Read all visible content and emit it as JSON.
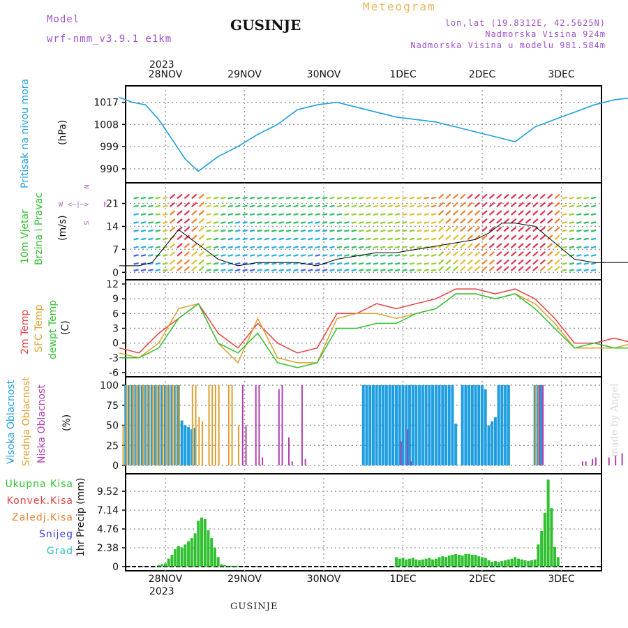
{
  "header": {
    "model_label": "Model",
    "model_name": "wrf-nmm_v3.9.1  e1km",
    "title": "GUSINJE",
    "meteogram": "Meteogram",
    "lonlat": "lon,lat (19.8312E, 42.5625N)",
    "altitude": "Nadmorska Visina 924m",
    "model_altitude": "Nadmorska Visina u modelu 981.584m"
  },
  "footer": {
    "station": "GUSINJE",
    "credit": "made by Angel"
  },
  "time_axis": {
    "year": "2023",
    "labels": [
      "28NOV",
      "29NOV",
      "30NOV",
      "1DEC",
      "2DEC",
      "3DEC"
    ]
  },
  "compass": {
    "n": "N",
    "s": "S",
    "e": "E",
    "w": "W"
  },
  "panels": {
    "pressure": {
      "ylabel": "Pritisak na nivou mora",
      "unit": "(hPa)",
      "color": "#1e9ee0"
    },
    "wind": {
      "ylabel1": "10m Vjetar",
      "ylabel2": "Brzina i Pravac",
      "unit": "(m/s)"
    },
    "temp": {
      "label_t2m": "2m Temp",
      "label_sfc": "SFC Temp",
      "label_dew": "dewpt Temp",
      "unit": "(C)",
      "colors": {
        "t2m": "#e84040",
        "sfc": "#e0a030",
        "dew": "#30c030"
      }
    },
    "cloud": {
      "label_high": "Visoka Oblacnost",
      "label_mid": "Srednja Oblacnost",
      "label_low": "Niska Oblacnost",
      "unit": "(%)",
      "colors": {
        "high": "#1e9ee0",
        "mid": "#e0a030",
        "low": "#b040b0"
      }
    },
    "precip": {
      "unit_label": "1hr Precip (mm)",
      "legend": [
        {
          "name": "Ukupna Kisa",
          "color": "#30c030"
        },
        {
          "name": "Konvek.Kisa",
          "color": "#e84040"
        },
        {
          "name": "Zaledj.Kisa",
          "color": "#f08030"
        },
        {
          "name": "Snijeg",
          "color": "#4040e0"
        },
        {
          "name": "Grad",
          "color": "#30c0c0"
        }
      ]
    }
  },
  "chart_data": [
    {
      "type": "line",
      "panel": "pressure",
      "ylabel": "Pritisak na nivou mora (hPa)",
      "yticks": [
        990,
        999,
        1008,
        1017
      ],
      "ylim": [
        986,
        1022
      ],
      "x_hours": [
        0,
        4,
        8,
        12,
        16,
        20,
        24,
        30,
        36,
        42,
        48,
        54,
        60,
        66,
        72,
        78,
        84,
        90,
        96,
        102,
        108,
        114,
        120,
        126,
        132,
        138,
        144,
        150,
        156,
        162,
        168
      ],
      "values": [
        1019,
        1017,
        1016,
        1010,
        1002,
        994,
        989,
        995,
        999,
        1004,
        1008,
        1014,
        1016,
        1017,
        1015,
        1013,
        1011,
        1010,
        1009,
        1007,
        1005,
        1003,
        1001,
        1007,
        1010,
        1013,
        1016,
        1018,
        1019,
        1020,
        1017
      ]
    },
    {
      "type": "line",
      "panel": "wind",
      "ylabel": "10m Vjetar Brzina i Pravac (m/s)",
      "yticks": [
        0,
        7,
        14,
        21
      ],
      "ylim": [
        -1,
        26
      ],
      "x_hours": [
        0,
        6,
        10,
        14,
        18,
        22,
        26,
        30,
        36,
        42,
        48,
        54,
        60,
        66,
        72,
        78,
        84,
        90,
        96,
        102,
        108,
        112,
        116,
        120,
        126,
        132,
        138,
        144,
        150,
        156,
        162,
        168
      ],
      "values": [
        2,
        2,
        3,
        8,
        13,
        10,
        7,
        4,
        2,
        3,
        3,
        3,
        2,
        4,
        5,
        6,
        6,
        7,
        8,
        9,
        10,
        12,
        15,
        15,
        14,
        9,
        4,
        3,
        3,
        3,
        2,
        3
      ]
    },
    {
      "type": "line",
      "panel": "temp",
      "ylabel": "(C)",
      "yticks": [
        -6,
        -3,
        0,
        3,
        6,
        9,
        12
      ],
      "ylim": [
        -6,
        12
      ],
      "x_hours": [
        0,
        6,
        12,
        18,
        24,
        30,
        36,
        42,
        48,
        54,
        60,
        66,
        72,
        78,
        84,
        90,
        96,
        102,
        108,
        114,
        120,
        126,
        132,
        138,
        144,
        150,
        156,
        162,
        168
      ],
      "series": [
        {
          "name": "2m Temp",
          "color": "#e84040",
          "values": [
            -1,
            -2,
            2,
            5,
            8,
            2,
            -1,
            4,
            0,
            -2,
            -1,
            6,
            6,
            8,
            7,
            8,
            9,
            11,
            11,
            10,
            11,
            9,
            5,
            0,
            0,
            1,
            0,
            4,
            4
          ]
        },
        {
          "name": "SFC Temp",
          "color": "#e0a030",
          "values": [
            -2,
            -3,
            0,
            7,
            8,
            0,
            -4,
            5,
            -3,
            -4,
            -4,
            5,
            6,
            6,
            5,
            6,
            7,
            10,
            10,
            9,
            10,
            8,
            4,
            -1,
            -1,
            -1,
            0,
            5,
            8
          ]
        },
        {
          "name": "dewpt Temp",
          "color": "#30c030",
          "values": [
            -3,
            -3,
            -1,
            5,
            8,
            0,
            -2,
            2,
            -4,
            -5,
            -4,
            3,
            3,
            4,
            4,
            6,
            7,
            10,
            10,
            9,
            10,
            7,
            3,
            -1,
            0,
            -1,
            -1,
            0,
            0
          ]
        }
      ]
    },
    {
      "type": "bar",
      "panel": "cloud",
      "ylabel": "(%)",
      "yticks": [
        0,
        25,
        50,
        75,
        100
      ],
      "ylim": [
        0,
        100
      ],
      "series": [
        {
          "name": "Visoka Oblacnost",
          "color": "#1e9ee0",
          "x_hours": [
            2,
            3,
            4,
            5,
            6,
            7,
            8,
            9,
            10,
            11,
            12,
            13,
            14,
            15,
            16,
            17,
            18,
            19,
            20,
            21,
            22,
            23,
            74,
            75,
            76,
            77,
            78,
            79,
            80,
            81,
            82,
            83,
            84,
            85,
            86,
            87,
            88,
            89,
            90,
            91,
            92,
            93,
            94,
            95,
            96,
            97,
            98,
            99,
            100,
            101,
            102,
            104,
            105,
            106,
            107,
            108,
            109,
            110,
            111,
            112,
            113,
            114,
            115,
            116,
            117,
            118,
            126,
            127,
            128
          ],
          "values": [
            100,
            100,
            100,
            100,
            100,
            100,
            100,
            100,
            100,
            100,
            100,
            100,
            100,
            100,
            100,
            100,
            100,
            56,
            50,
            48,
            45,
            47,
            100,
            100,
            100,
            100,
            100,
            100,
            100,
            100,
            100,
            100,
            100,
            100,
            100,
            100,
            100,
            100,
            100,
            100,
            100,
            100,
            100,
            100,
            100,
            100,
            100,
            100,
            100,
            100,
            52,
            100,
            100,
            100,
            100,
            100,
            100,
            100,
            95,
            50,
            55,
            60,
            100,
            100,
            100,
            100,
            100,
            100,
            100
          ]
        },
        {
          "name": "Srednja Oblacnost",
          "color": "#e0a030",
          "x_hours": [
            1,
            2,
            3,
            4,
            5,
            6,
            7,
            8,
            9,
            10,
            11,
            12,
            13,
            14,
            15,
            16,
            17,
            18,
            22,
            23,
            24,
            25,
            27,
            28,
            29,
            30,
            33,
            34,
            36,
            126,
            127
          ],
          "values": [
            50,
            100,
            100,
            100,
            100,
            100,
            100,
            100,
            100,
            100,
            100,
            100,
            100,
            100,
            100,
            100,
            100,
            100,
            100,
            100,
            60,
            55,
            100,
            100,
            100,
            100,
            100,
            100,
            50,
            100,
            100
          ]
        },
        {
          "name": "Niska Oblacnost",
          "color": "#b040b0",
          "x_hours": [
            37,
            38,
            41,
            42,
            43,
            48,
            49,
            51,
            52,
            55,
            56,
            85,
            87,
            88,
            127,
            128,
            140,
            141,
            143,
            144,
            148,
            150,
            152,
            156,
            157,
            159,
            160,
            161,
            163,
            164,
            166,
            167
          ],
          "values": [
            100,
            50,
            100,
            100,
            10,
            95,
            100,
            35,
            5,
            100,
            8,
            30,
            45,
            5,
            100,
            100,
            5,
            5,
            8,
            10,
            10,
            12,
            15,
            20,
            25,
            42,
            100,
            8,
            100,
            10,
            100,
            52
          ]
        }
      ]
    },
    {
      "type": "bar",
      "panel": "precip",
      "ylabel": "1hr Precip (mm)",
      "yticks": [
        0,
        2.38,
        4.76,
        7.14,
        9.52
      ],
      "ylim": [
        0,
        11.2
      ],
      "series": [
        {
          "name": "Ukupna Kisa",
          "color": "#30c030",
          "x_hours": [
            12,
            13,
            14,
            15,
            16,
            17,
            18,
            19,
            20,
            21,
            22,
            23,
            24,
            25,
            26,
            27,
            28,
            29,
            30,
            31,
            32,
            33,
            34,
            35,
            36,
            84,
            85,
            86,
            87,
            88,
            89,
            90,
            91,
            92,
            93,
            94,
            95,
            96,
            97,
            98,
            99,
            100,
            101,
            102,
            103,
            104,
            105,
            106,
            107,
            108,
            109,
            110,
            111,
            112,
            113,
            114,
            115,
            116,
            117,
            118,
            119,
            120,
            121,
            122,
            123,
            124,
            125,
            126,
            127,
            128,
            129,
            130,
            131,
            132,
            133
          ],
          "values": [
            0.2,
            0.3,
            0.4,
            1.0,
            1.5,
            2.2,
            2.6,
            2.4,
            2.8,
            3.2,
            3.6,
            4.2,
            5.8,
            6.2,
            6.0,
            4.6,
            3.6,
            2.4,
            1.2,
            0.3,
            0.2,
            0.1,
            0.1,
            0.1,
            0.1,
            1.2,
            1.0,
            1.1,
            0.9,
            1.0,
            1.1,
            0.9,
            0.8,
            0.9,
            1.0,
            1.1,
            0.9,
            1.0,
            1.2,
            1.3,
            1.2,
            1.4,
            1.5,
            1.6,
            1.5,
            1.4,
            1.6,
            1.6,
            1.5,
            1.5,
            1.3,
            1.2,
            1.1,
            0.8,
            0.6,
            0.7,
            0.6,
            0.7,
            0.8,
            0.9,
            1.0,
            1.2,
            1.0,
            0.9,
            0.8,
            0.7,
            0.8,
            0.9,
            2.8,
            4.5,
            6.8,
            11.0,
            7.4,
            2.5,
            1.2
          ]
        }
      ]
    }
  ]
}
